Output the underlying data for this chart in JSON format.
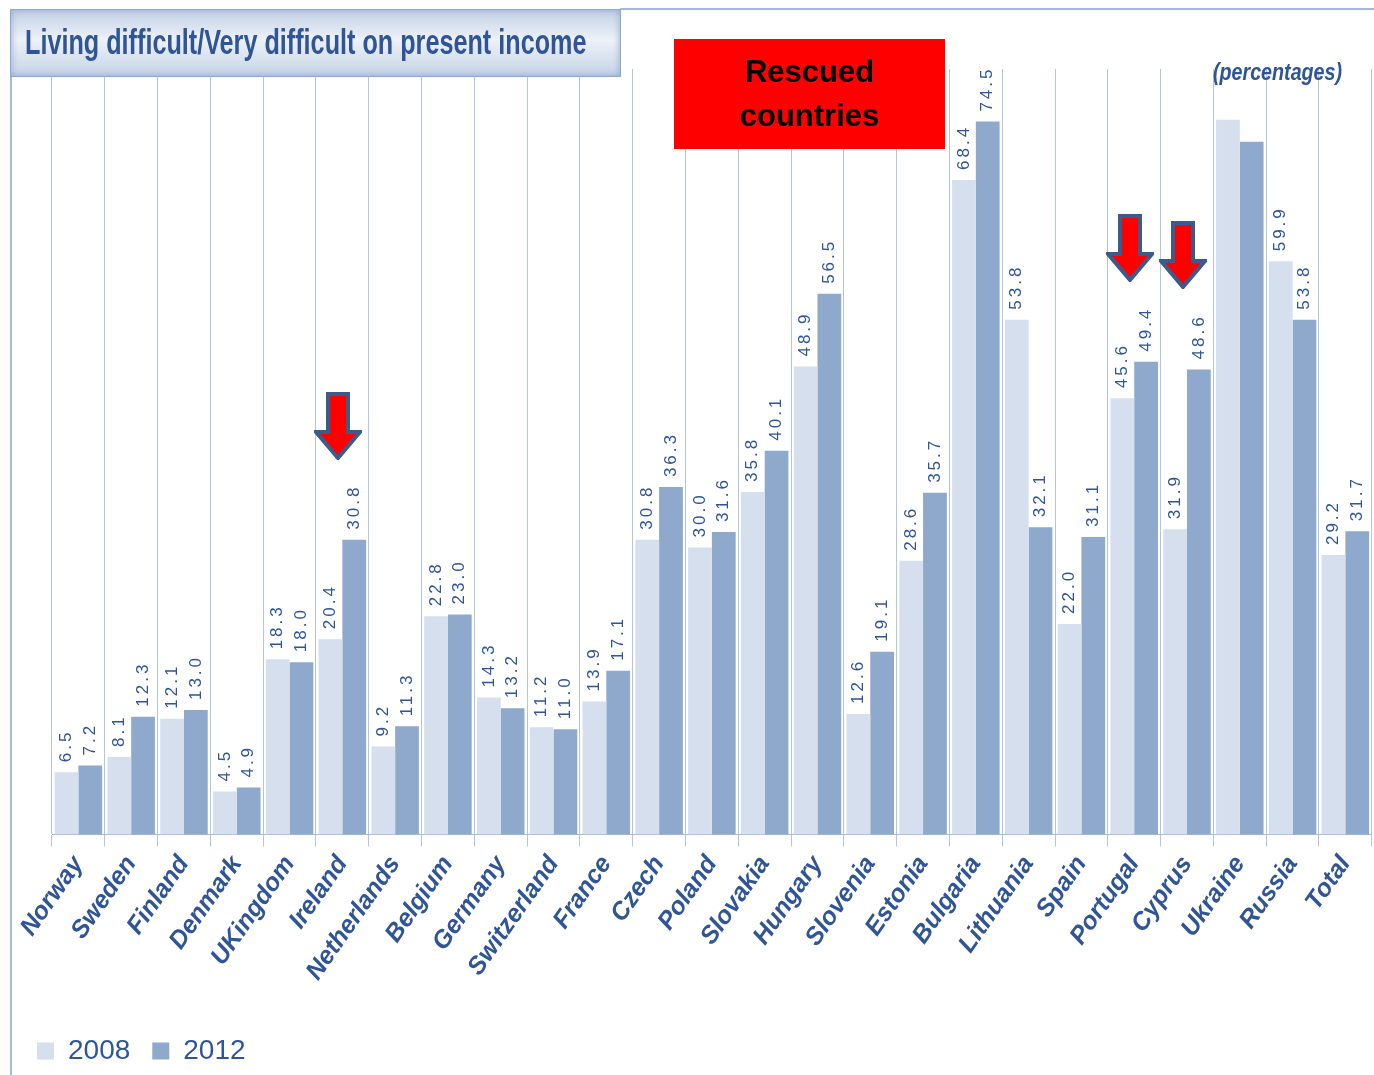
{
  "chart_data": {
    "type": "bar",
    "title": "Living difficult/Very difficult on present income",
    "annotations": [
      "Rescued countries",
      "(percentages)"
    ],
    "categories": [
      "Norway",
      "Sweden",
      "Finland",
      "Denmark",
      "UKingdom",
      "Ireland",
      "Netherlands",
      "Belgium",
      "Germany",
      "Switzerland",
      "France",
      "Czech",
      "Poland",
      "Slovakia",
      "Hungary",
      "Slovenia",
      "Estonia",
      "Bulgaria",
      "Lithuania",
      "Spain",
      "Portugal",
      "Cyprus",
      "Ukraine",
      "Russia",
      "Total"
    ],
    "series": [
      {
        "name": "2008",
        "color": "#d5dfed",
        "values": [
          6.5,
          8.1,
          12.1,
          4.5,
          18.3,
          20.4,
          9.2,
          22.8,
          14.3,
          11.2,
          13.9,
          30.8,
          30.0,
          35.8,
          48.9,
          12.6,
          28.6,
          68.4,
          53.8,
          22.0,
          45.6,
          31.9,
          74.7,
          59.9,
          29.2
        ],
        "value_labels": [
          "6.5",
          "8.1",
          "12.1",
          "4.5",
          "18.3",
          "20.4",
          "9.2",
          "22.8",
          "14.3",
          "11.2",
          "13.9",
          "30.8",
          "30.0",
          "35.8",
          "48.9",
          "12.6",
          "28.6",
          "68.4",
          "53.8",
          "22.0",
          "45.6",
          "31.9",
          null,
          "59.9",
          "29.2"
        ]
      },
      {
        "name": "2012",
        "color": "#8ea9cc",
        "values": [
          7.2,
          12.3,
          13.0,
          4.9,
          18.0,
          30.8,
          11.3,
          23.0,
          13.2,
          11.0,
          17.1,
          36.3,
          31.6,
          40.1,
          56.5,
          19.1,
          35.7,
          74.5,
          32.1,
          31.1,
          49.4,
          48.6,
          72.4,
          53.8,
          31.7
        ],
        "value_labels": [
          "7.2",
          "12.3",
          "13.0",
          "4.9",
          "18.0",
          "30.8",
          "11.3",
          "23.0",
          "13.2",
          "11.0",
          "17.1",
          "36.3",
          "31.6",
          "40.1",
          "56.5",
          "19.1",
          "35.7",
          "74.5",
          "32.1",
          "31.1",
          "49.4",
          "48.6",
          null,
          "53.8",
          "31.7"
        ]
      }
    ],
    "ylim": [
      0,
      80
    ],
    "grid": "x",
    "legend": "bottom left",
    "tick_labels": "x"
  }
}
